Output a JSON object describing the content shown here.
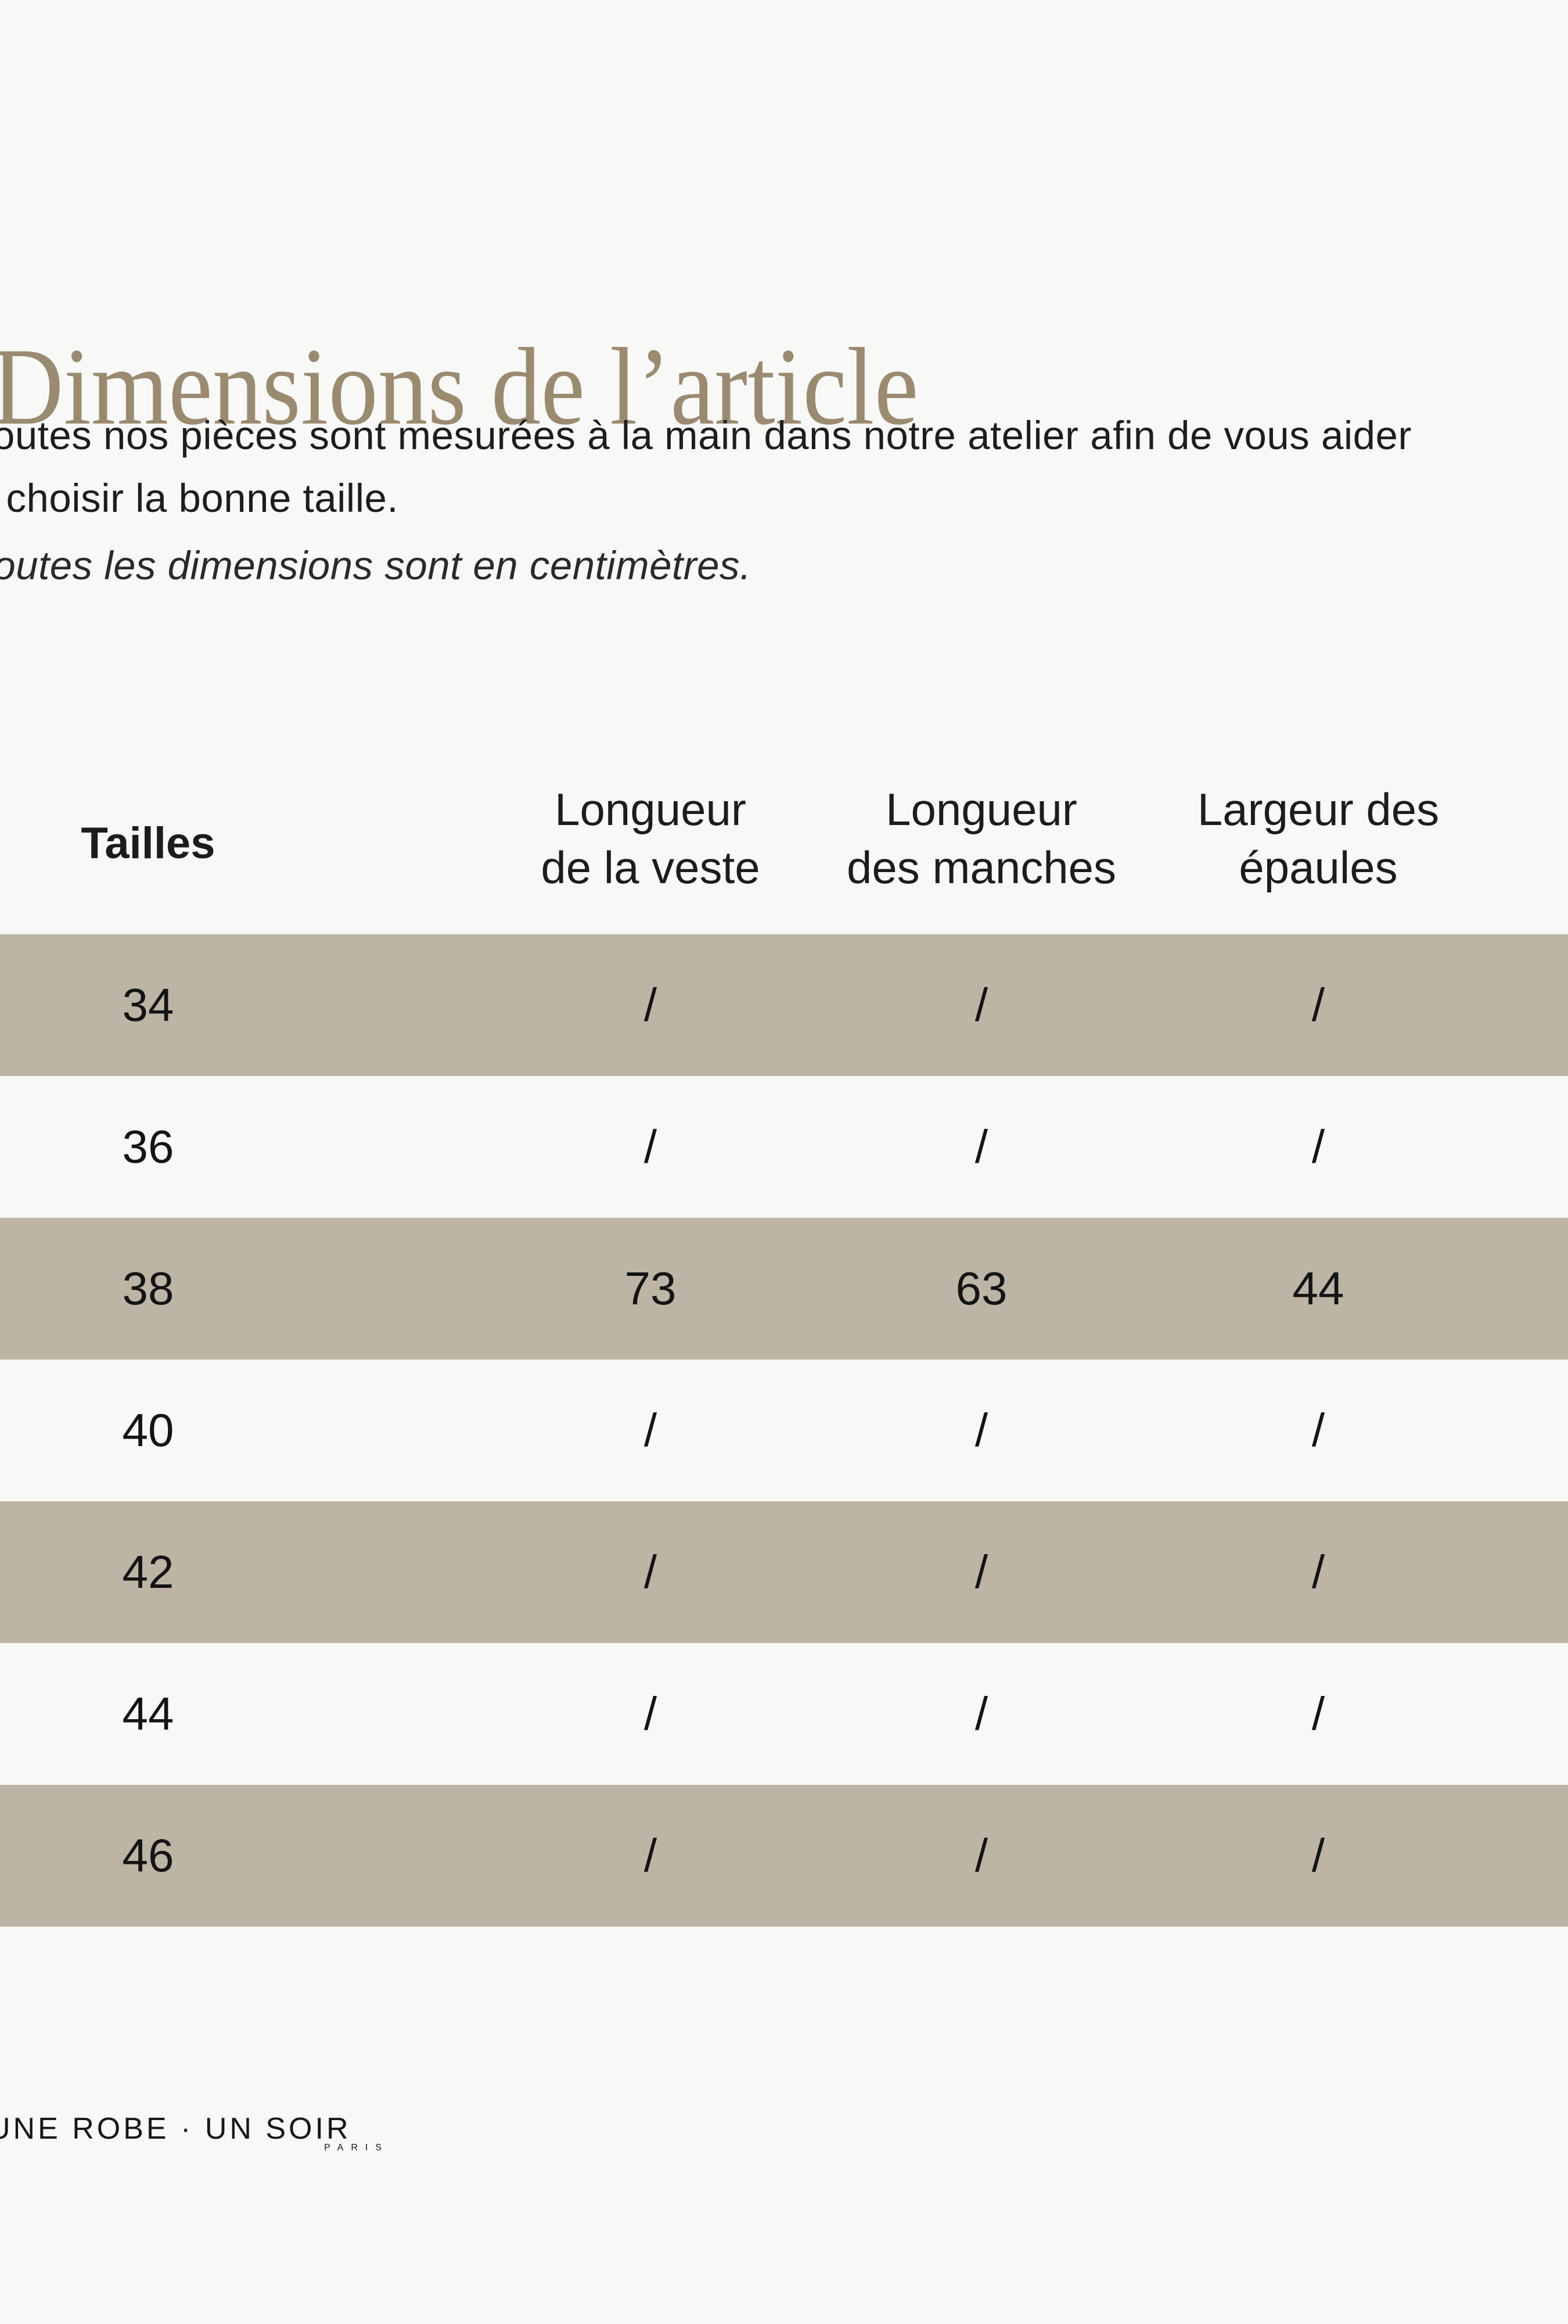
{
  "page": {
    "background": "#f8f8f7",
    "title": {
      "text": "Dimensions de l’article",
      "color": "#9a8a70"
    },
    "intro": {
      "line1": "Toutes nos pièces sont mesurées à la main dans notre atelier afin de vous aider",
      "line2": "à choisir la bonne taille."
    },
    "note": "Toutes les dimensions sont en centimètres."
  },
  "size_table": {
    "row_highlight_color": "#bcb4a5",
    "headers": [
      {
        "lines": [
          "Tailles"
        ]
      },
      {
        "lines": [
          "Longueur",
          "de la veste"
        ]
      },
      {
        "lines": [
          "Longueur",
          "des manches"
        ]
      },
      {
        "lines": [
          "Largeur des",
          "épaules"
        ]
      }
    ],
    "rows": [
      {
        "size": "34",
        "values": [
          "/",
          "/",
          "/"
        ]
      },
      {
        "size": "36",
        "values": [
          "/",
          "/",
          "/"
        ]
      },
      {
        "size": "38",
        "values": [
          "73",
          "63",
          "44"
        ]
      },
      {
        "size": "40",
        "values": [
          "/",
          "/",
          "/"
        ]
      },
      {
        "size": "42",
        "values": [
          "/",
          "/",
          "/"
        ]
      },
      {
        "size": "44",
        "values": [
          "/",
          "/",
          "/"
        ]
      },
      {
        "size": "46",
        "values": [
          "/",
          "/",
          "/"
        ]
      }
    ]
  },
  "footer": {
    "brand": "UNE ROBE · UN SOIR",
    "city": "PARIS"
  }
}
